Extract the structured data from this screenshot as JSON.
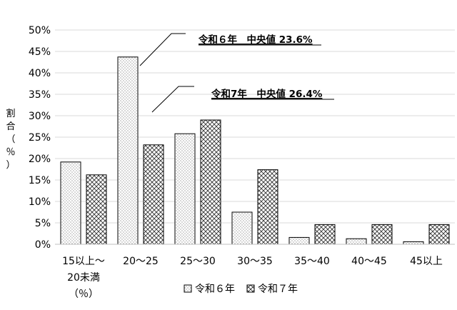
{
  "chart_data": {
    "type": "bar",
    "ylabel": "割合（％）",
    "xlabel": "（％）",
    "ylim": [
      0,
      0.5
    ],
    "yticks": [
      "0%",
      "5%",
      "10%",
      "15%",
      "20%",
      "25%",
      "30%",
      "35%",
      "40%",
      "45%",
      "50%"
    ],
    "categories": [
      "15以上～20未満",
      "20～25",
      "25～30",
      "30～35",
      "35～40",
      "40～45",
      "45以上"
    ],
    "category_labels": [
      [
        "15以上～",
        "20未満"
      ],
      [
        "20～25"
      ],
      [
        "25～30"
      ],
      [
        "30～35"
      ],
      [
        "35～40"
      ],
      [
        "40～45"
      ],
      [
        "45以上"
      ]
    ],
    "series": [
      {
        "name": "令和６年",
        "values": [
          0.192,
          0.437,
          0.258,
          0.075,
          0.016,
          0.013,
          0.006
        ],
        "pattern": "dots"
      },
      {
        "name": "令和７年",
        "values": [
          0.162,
          0.232,
          0.29,
          0.174,
          0.046,
          0.046,
          0.046
        ],
        "pattern": "hatch"
      }
    ],
    "annotations": [
      {
        "text": "令和６年　中央値 23.6%",
        "series": 0,
        "category": 1
      },
      {
        "text": "令和7年　中央値 26.4%",
        "series": 1,
        "category": 1
      }
    ],
    "legend": {
      "position": "bottom"
    },
    "grid": true
  }
}
